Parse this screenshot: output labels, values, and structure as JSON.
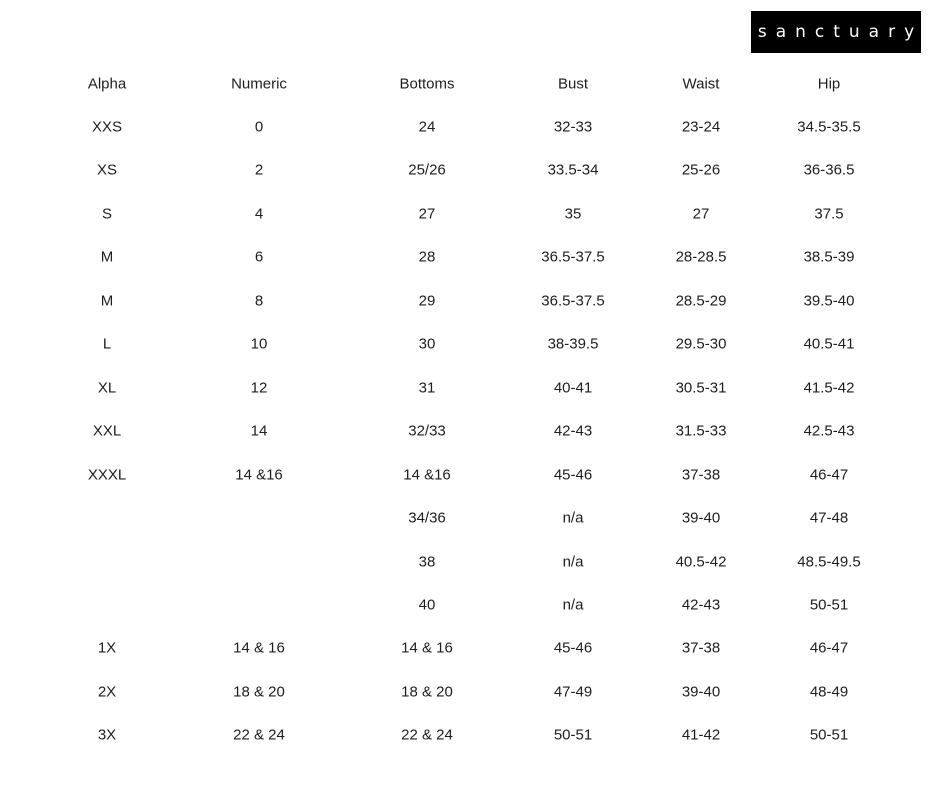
{
  "brand": {
    "logo_text": "sanctuary"
  },
  "table": {
    "headers": [
      "Alpha",
      "Numeric",
      "Bottoms",
      "Bust",
      "Waist",
      "Hip"
    ],
    "rows": [
      [
        "XXS",
        "0",
        "24",
        "32-33",
        "23-24",
        "34.5-35.5"
      ],
      [
        "XS",
        "2",
        "25/26",
        "33.5-34",
        "25-26",
        "36-36.5"
      ],
      [
        "S",
        "4",
        "27",
        "35",
        "27",
        "37.5"
      ],
      [
        "M",
        "6",
        "28",
        "36.5-37.5",
        "28-28.5",
        "38.5-39"
      ],
      [
        "M",
        "8",
        "29",
        "36.5-37.5",
        "28.5-29",
        "39.5-40"
      ],
      [
        "L",
        "10",
        "30",
        "38-39.5",
        "29.5-30",
        "40.5-41"
      ],
      [
        "XL",
        "12",
        "31",
        "40-41",
        "30.5-31",
        "41.5-42"
      ],
      [
        "XXL",
        "14",
        "32/33",
        "42-43",
        "31.5-33",
        "42.5-43"
      ],
      [
        "XXXL",
        "14 &16",
        "14 &16",
        "45-46",
        "37-38",
        "46-47"
      ],
      [
        "",
        "",
        "34/36",
        "n/a",
        "39-40",
        "47-48"
      ],
      [
        "",
        "",
        "38",
        "n/a",
        "40.5-42",
        "48.5-49.5"
      ],
      [
        "",
        "",
        "40",
        "n/a",
        "42-43",
        "50-51"
      ],
      [
        "1X",
        "14 & 16",
        "14 & 16",
        "45-46",
        "37-38",
        "46-47"
      ],
      [
        "2X",
        "18 & 20",
        "18 & 20",
        "47-49",
        "39-40",
        "48-49"
      ],
      [
        "3X",
        "22 & 24",
        "22 & 24",
        "50-51",
        "41-42",
        "50-51"
      ]
    ]
  }
}
